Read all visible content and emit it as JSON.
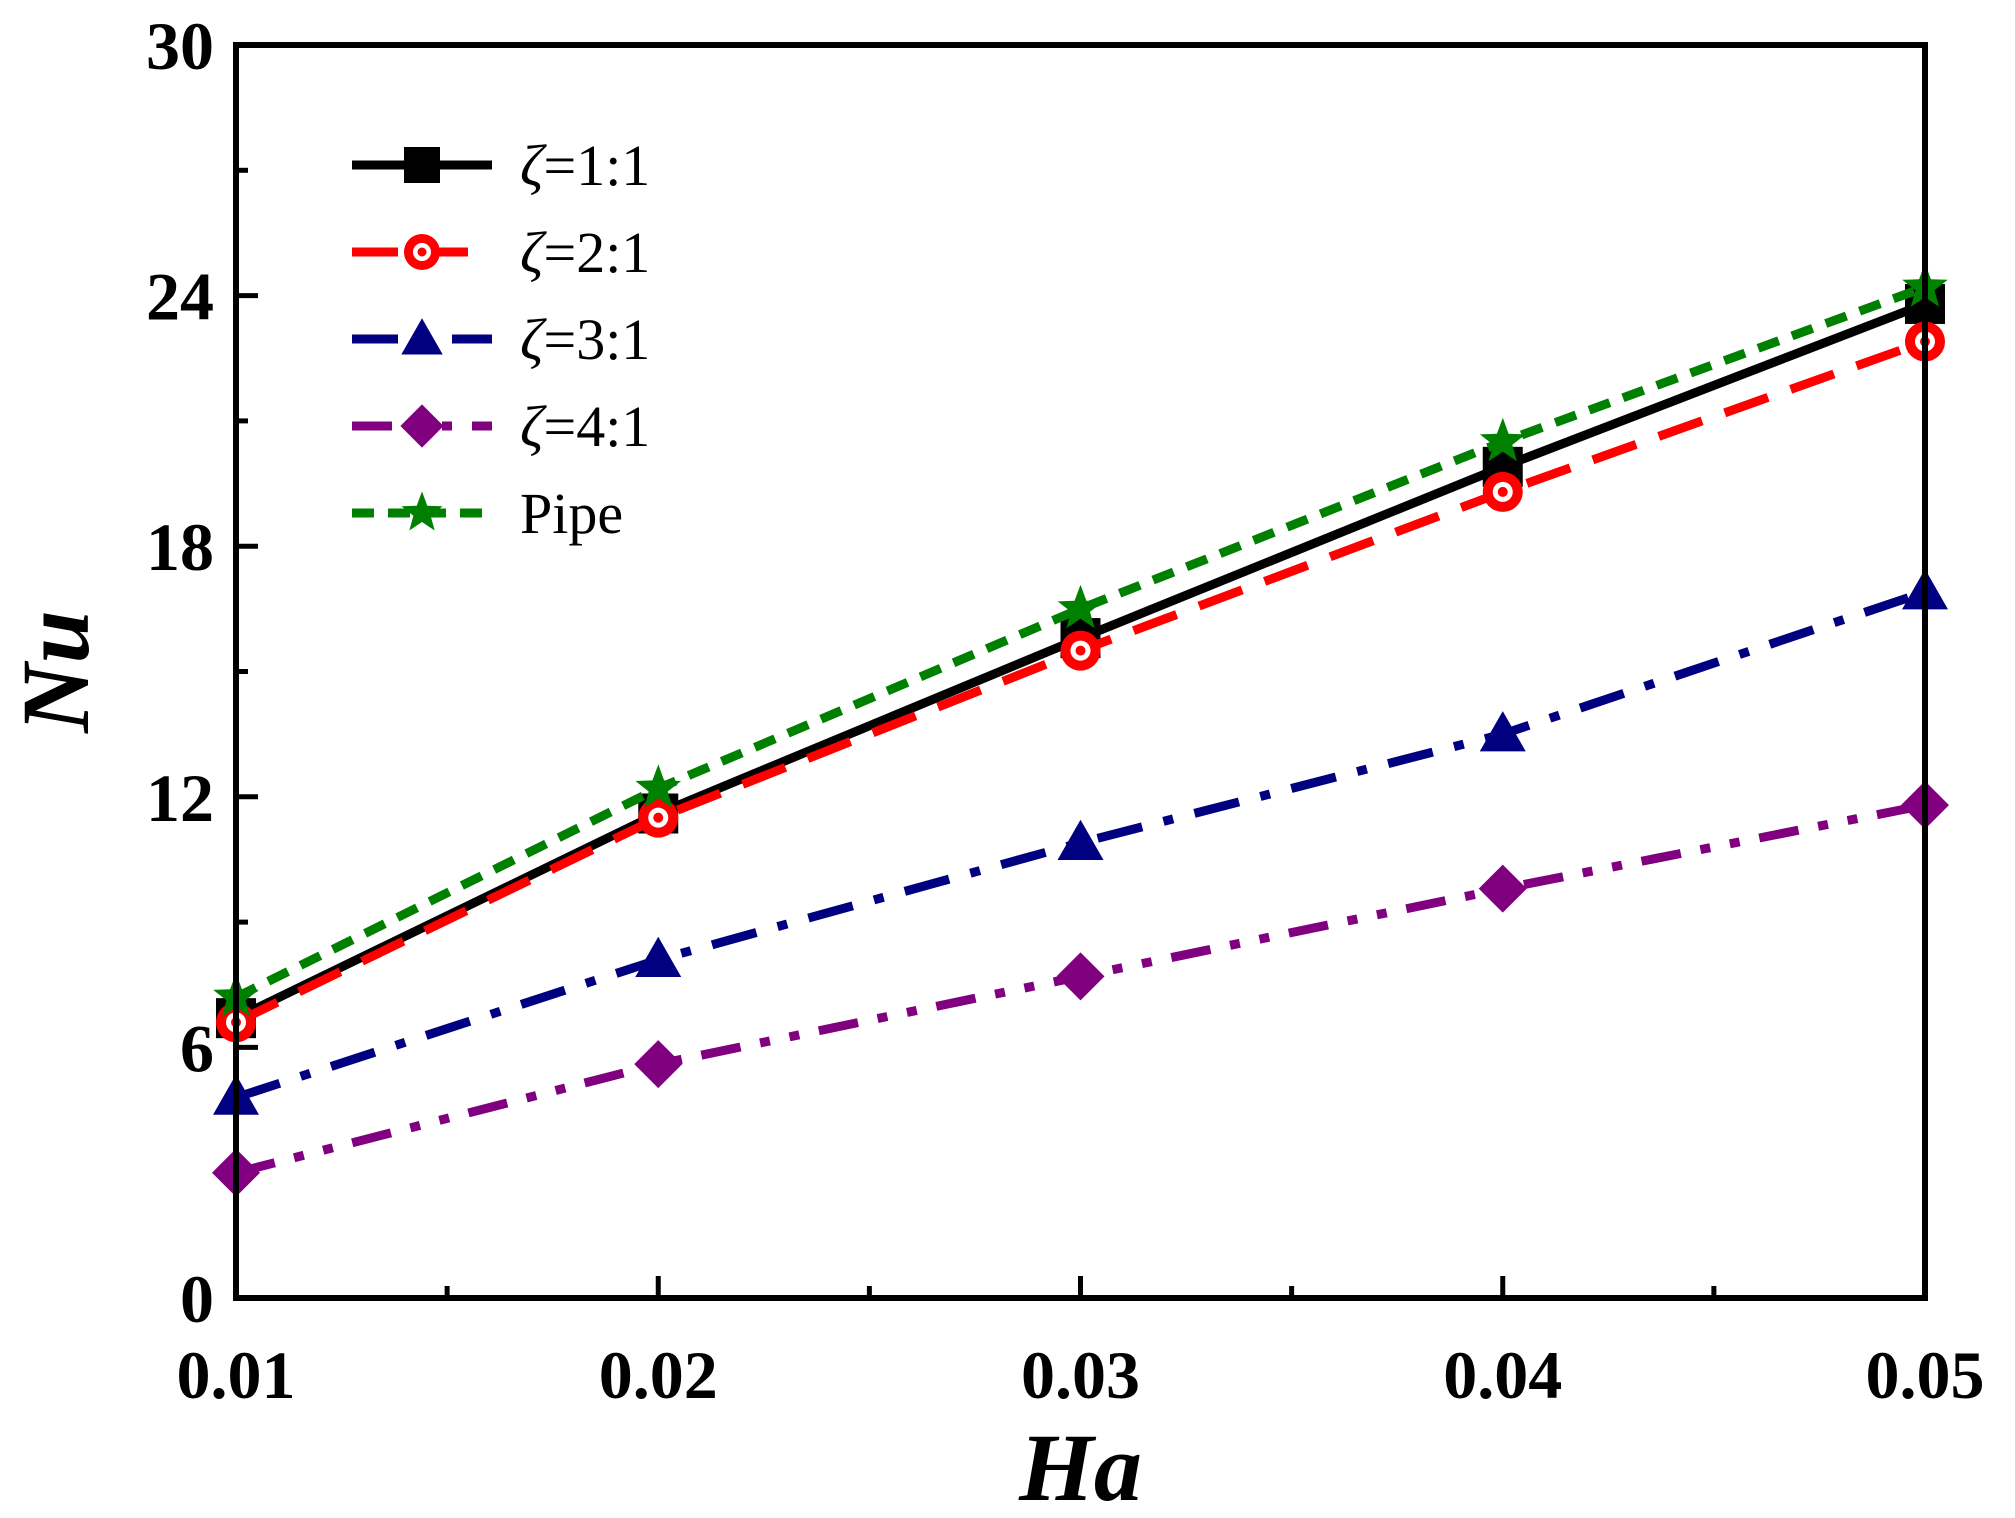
{
  "chart_data": {
    "type": "line",
    "title": "",
    "xlabel": "Ha",
    "ylabel": "Nu",
    "xlim": [
      0.01,
      0.05
    ],
    "ylim": [
      0,
      30
    ],
    "x": [
      0.01,
      0.02,
      0.03,
      0.04,
      0.05
    ],
    "x_tick_labels": [
      "0.01",
      "0.02",
      "0.03",
      "0.04",
      "0.05"
    ],
    "y_ticks": [
      0,
      6,
      12,
      18,
      24,
      30
    ],
    "y_tick_labels": [
      "0",
      "6",
      "12",
      "18",
      "24",
      "30"
    ],
    "x_minor_ticks": [
      0.015,
      0.025,
      0.035,
      0.045
    ],
    "y_minor_ticks": [
      3,
      9,
      15,
      21,
      27
    ],
    "legend_position": "top-left",
    "series": [
      {
        "name": "ζ=1:1",
        "symbol": "ζ",
        "ratio": "=1:1",
        "color": "#000000",
        "marker": "square",
        "dash": "solid",
        "values": [
          6.7,
          11.6,
          15.8,
          19.9,
          23.8
        ]
      },
      {
        "name": "ζ=2:1",
        "symbol": "ζ",
        "ratio": "=2:1",
        "color": "#ff0000",
        "marker": "circle",
        "dash": "dash",
        "values": [
          6.6,
          11.5,
          15.5,
          19.3,
          22.9
        ]
      },
      {
        "name": "ζ=3:1",
        "symbol": "ζ",
        "ratio": "=3:1",
        "color": "#000080",
        "marker": "triangle",
        "dash": "dashdot",
        "values": [
          4.8,
          8.1,
          10.9,
          13.5,
          16.9
        ]
      },
      {
        "name": "ζ=4:1",
        "symbol": "ζ",
        "ratio": "=4:1",
        "color": "#800080",
        "marker": "diamond",
        "dash": "dashdotdot",
        "values": [
          3.0,
          5.6,
          7.7,
          9.8,
          11.8
        ]
      },
      {
        "name": "Pipe",
        "symbol": "",
        "ratio": "Pipe",
        "color": "#008000",
        "marker": "star",
        "dash": "shortdash",
        "values": [
          7.2,
          12.2,
          16.5,
          20.5,
          24.2
        ]
      }
    ]
  }
}
